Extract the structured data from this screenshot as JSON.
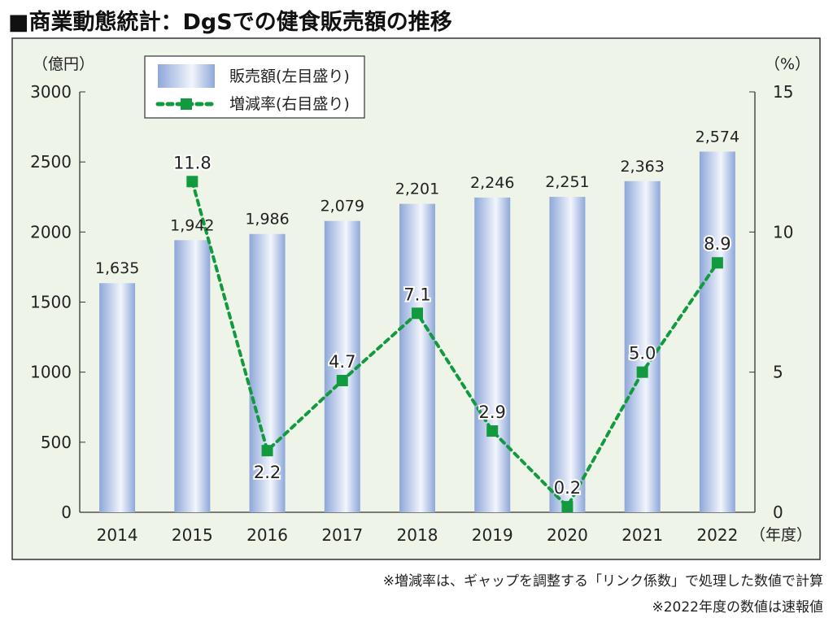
{
  "title": "■商業動態統計：DgSでの健食販売額の推移",
  "notes": [
    "※増減率は、ギャップを調整する「リンク係数」で処理した数値で計算",
    "※2022年度の数値は速報値"
  ],
  "colors": {
    "bar_edge": "#8ea7d9",
    "bar_mid": "#f2f5fc",
    "line": "#119a3e",
    "panel": "#eef4e8"
  },
  "chart_data": {
    "type": "bar",
    "categories": [
      "2014",
      "2015",
      "2016",
      "2017",
      "2018",
      "2019",
      "2020",
      "2021",
      "2022"
    ],
    "series": [
      {
        "name": "販売額(左目盛り)",
        "axis": "left",
        "type": "bar",
        "values": [
          1635,
          1942,
          1986,
          2079,
          2201,
          2246,
          2251,
          2363,
          2574
        ],
        "labels": [
          "1,635",
          "1,942",
          "1,986",
          "2,079",
          "2,201",
          "2,246",
          "2,251",
          "2,363",
          "2,574"
        ]
      },
      {
        "name": "増減率(右目盛り)",
        "axis": "right",
        "type": "line",
        "values": [
          null,
          11.8,
          2.2,
          4.7,
          7.1,
          2.9,
          0.2,
          5.0,
          8.9
        ],
        "labels": [
          "",
          "11.8",
          "2.2",
          "4.7",
          "7.1",
          "2.9",
          "0.2",
          "5.0",
          "8.9"
        ]
      }
    ],
    "left_axis": {
      "unit": "（億円）",
      "ylim": [
        0,
        3000
      ],
      "ticks": [
        "0",
        "500",
        "1000",
        "1500",
        "2000",
        "2500",
        "3000"
      ]
    },
    "right_axis": {
      "unit": "（%）",
      "ylim": [
        0,
        15
      ],
      "ticks": [
        "0",
        "5",
        "10",
        "15"
      ]
    },
    "xlabel": "（年度）",
    "legend": "top-left"
  }
}
